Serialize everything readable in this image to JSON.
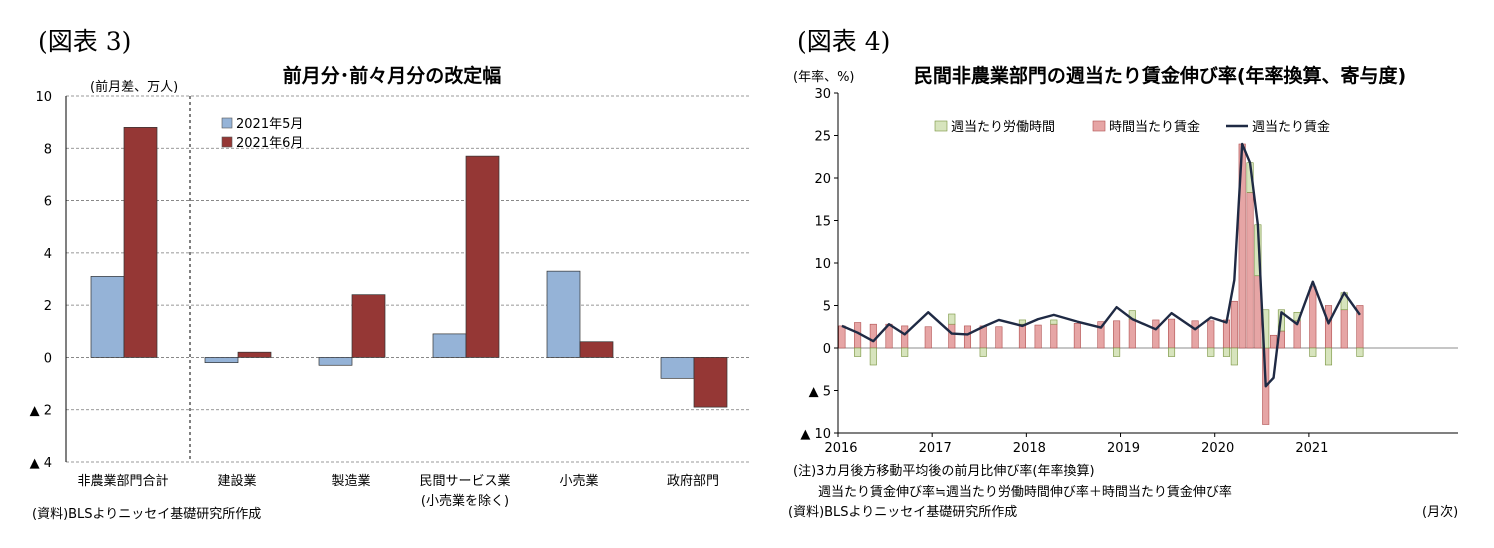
{
  "figures": [
    {
      "label": "(図表 3)"
    },
    {
      "label": "(図表 4)"
    }
  ],
  "chart_data": [
    {
      "type": "bar",
      "title": "前月分･前々月分の改定幅",
      "ylabel": "(前月差、万人)",
      "categories": [
        "非農業部門合計",
        "建設業",
        "製造業",
        "民間サービス業",
        "小売業",
        "政府部門"
      ],
      "category_sublabels": [
        "",
        "",
        "",
        "(小売業を除く)",
        "",
        ""
      ],
      "ylim": [
        -4,
        10
      ],
      "yticks": [
        {
          "value": -4,
          "label": "▲ 4"
        },
        {
          "value": -2,
          "label": "▲ 2"
        },
        {
          "value": 0,
          "label": "0"
        },
        {
          "value": 2,
          "label": "2"
        },
        {
          "value": 4,
          "label": "4"
        },
        {
          "value": 6,
          "label": "6"
        },
        {
          "value": 8,
          "label": "8"
        },
        {
          "value": 10,
          "label": "10"
        }
      ],
      "series": [
        {
          "name": "2021年5月",
          "color": "#95b3d7",
          "values": [
            3.1,
            -0.2,
            -0.3,
            0.9,
            3.3,
            -0.8
          ]
        },
        {
          "name": "2021年6月",
          "color": "#953735",
          "values": [
            8.8,
            0.2,
            2.4,
            7.7,
            0.6,
            -1.9
          ]
        }
      ],
      "legend": "top-left",
      "grid": true,
      "source": "(資料)BLSよりニッセイ基礎研究所作成"
    },
    {
      "type": "bar+line",
      "title": "民間非農業部門の週当たり賃金伸び率(年率換算、寄与度)",
      "ylabel": "(年率、%)",
      "ylim": [
        -10,
        30
      ],
      "yticks": [
        {
          "value": -10,
          "label": "▲ 10"
        },
        {
          "value": -5,
          "label": "▲ 5"
        },
        {
          "value": 0,
          "label": "0"
        },
        {
          "value": 5,
          "label": "5"
        },
        {
          "value": 10,
          "label": "10"
        },
        {
          "value": 15,
          "label": "15"
        },
        {
          "value": 20,
          "label": "20"
        },
        {
          "value": 25,
          "label": "25"
        },
        {
          "value": 30,
          "label": "30"
        }
      ],
      "xticks": [
        "2016",
        "2017",
        "2018",
        "2019",
        "2020",
        "2021"
      ],
      "x_unit": "(月次)",
      "legend": "top",
      "grid": false,
      "series": [
        {
          "name": "週当たり労働時間",
          "kind": "bar",
          "color": "#d7e4bd"
        },
        {
          "name": "時間当たり賃金",
          "kind": "bar",
          "color": "#e6a5a5"
        },
        {
          "name": "週当たり賃金",
          "kind": "line",
          "color": "#1f2a44"
        }
      ],
      "monthly": [
        {
          "x": "2016-01",
          "hours": 0.0,
          "wage": 2.6
        },
        {
          "x": "2016-03",
          "hours": -1.0,
          "wage": 3.0
        },
        {
          "x": "2016-05",
          "hours": -2.0,
          "wage": 2.8
        },
        {
          "x": "2016-07",
          "hours": 0.0,
          "wage": 2.8
        },
        {
          "x": "2016-09",
          "hours": -1.0,
          "wage": 2.6
        },
        {
          "x": "2016-12",
          "hours": 0.0,
          "wage": 2.5
        },
        {
          "x": "2017-03",
          "hours": 1.2,
          "wage": 2.8
        },
        {
          "x": "2017-05",
          "hours": 0.0,
          "wage": 2.6
        },
        {
          "x": "2017-07",
          "hours": -1.0,
          "wage": 2.6
        },
        {
          "x": "2017-09",
          "hours": 0.0,
          "wage": 2.5
        },
        {
          "x": "2017-12",
          "hours": 0.5,
          "wage": 2.8
        },
        {
          "x": "2018-02",
          "hours": 0.0,
          "wage": 2.7
        },
        {
          "x": "2018-04",
          "hours": 0.5,
          "wage": 2.8
        },
        {
          "x": "2018-07",
          "hours": 0.0,
          "wage": 2.9
        },
        {
          "x": "2018-10",
          "hours": 0.0,
          "wage": 3.1
        },
        {
          "x": "2018-12",
          "hours": -1.0,
          "wage": 3.2
        },
        {
          "x": "2019-02",
          "hours": 1.0,
          "wage": 3.4
        },
        {
          "x": "2019-05",
          "hours": 0.0,
          "wage": 3.3
        },
        {
          "x": "2019-07",
          "hours": -1.0,
          "wage": 3.4
        },
        {
          "x": "2019-10",
          "hours": 0.0,
          "wage": 3.2
        },
        {
          "x": "2019-12",
          "hours": -1.0,
          "wage": 3.2
        },
        {
          "x": "2020-02",
          "hours": -1.0,
          "wage": 3.3
        },
        {
          "x": "2020-03",
          "hours": -2.0,
          "wage": 5.5
        },
        {
          "x": "2020-04",
          "hours": 0.0,
          "wage": 24.0
        },
        {
          "x": "2020-05",
          "hours": 3.5,
          "wage": 18.3
        },
        {
          "x": "2020-06",
          "hours": 6.0,
          "wage": 8.5
        },
        {
          "x": "2020-07",
          "hours": 4.5,
          "wage": -9.0
        },
        {
          "x": "2020-08",
          "hours": 0.0,
          "wage": 1.5
        },
        {
          "x": "2020-09",
          "hours": 2.5,
          "wage": 2.0
        },
        {
          "x": "2020-11",
          "hours": 1.0,
          "wage": 3.2
        },
        {
          "x": "2021-01",
          "hours": -1.0,
          "wage": 7.2
        },
        {
          "x": "2021-03",
          "hours": -2.0,
          "wage": 5.0
        },
        {
          "x": "2021-05",
          "hours": 2.0,
          "wage": 4.5
        },
        {
          "x": "2021-07",
          "hours": -1.0,
          "wage": 5.0
        }
      ],
      "weekly_wage_line": [
        {
          "x": "2016-01",
          "y": 2.6
        },
        {
          "x": "2016-03",
          "y": 1.8
        },
        {
          "x": "2016-05",
          "y": 0.8
        },
        {
          "x": "2016-07",
          "y": 2.8
        },
        {
          "x": "2016-09",
          "y": 1.6
        },
        {
          "x": "2016-12",
          "y": 4.2
        },
        {
          "x": "2017-03",
          "y": 1.7
        },
        {
          "x": "2017-05",
          "y": 1.6
        },
        {
          "x": "2017-07",
          "y": 2.5
        },
        {
          "x": "2017-09",
          "y": 3.3
        },
        {
          "x": "2017-12",
          "y": 2.6
        },
        {
          "x": "2018-02",
          "y": 3.4
        },
        {
          "x": "2018-04",
          "y": 3.9
        },
        {
          "x": "2018-07",
          "y": 3.1
        },
        {
          "x": "2018-10",
          "y": 2.4
        },
        {
          "x": "2018-12",
          "y": 4.8
        },
        {
          "x": "2019-02",
          "y": 3.4
        },
        {
          "x": "2019-05",
          "y": 2.2
        },
        {
          "x": "2019-07",
          "y": 4.1
        },
        {
          "x": "2019-10",
          "y": 2.2
        },
        {
          "x": "2019-12",
          "y": 3.6
        },
        {
          "x": "2020-02",
          "y": 3.0
        },
        {
          "x": "2020-03",
          "y": 8.0
        },
        {
          "x": "2020-04",
          "y": 24.0
        },
        {
          "x": "2020-05",
          "y": 21.8
        },
        {
          "x": "2020-06",
          "y": 14.5
        },
        {
          "x": "2020-07",
          "y": -4.5
        },
        {
          "x": "2020-08",
          "y": -3.5
        },
        {
          "x": "2020-09",
          "y": 4.2
        },
        {
          "x": "2020-11",
          "y": 2.8
        },
        {
          "x": "2021-01",
          "y": 7.8
        },
        {
          "x": "2021-03",
          "y": 2.9
        },
        {
          "x": "2021-05",
          "y": 6.5
        },
        {
          "x": "2021-07",
          "y": 3.9
        }
      ],
      "notes": [
        "(注)3カ月後方移動平均後の前月比伸び率(年率換算)",
        "週当たり賃金伸び率≒週当たり労働時間伸び率＋時間当たり賃金伸び率"
      ],
      "source": "(資料)BLSよりニッセイ基礎研究所作成"
    }
  ]
}
